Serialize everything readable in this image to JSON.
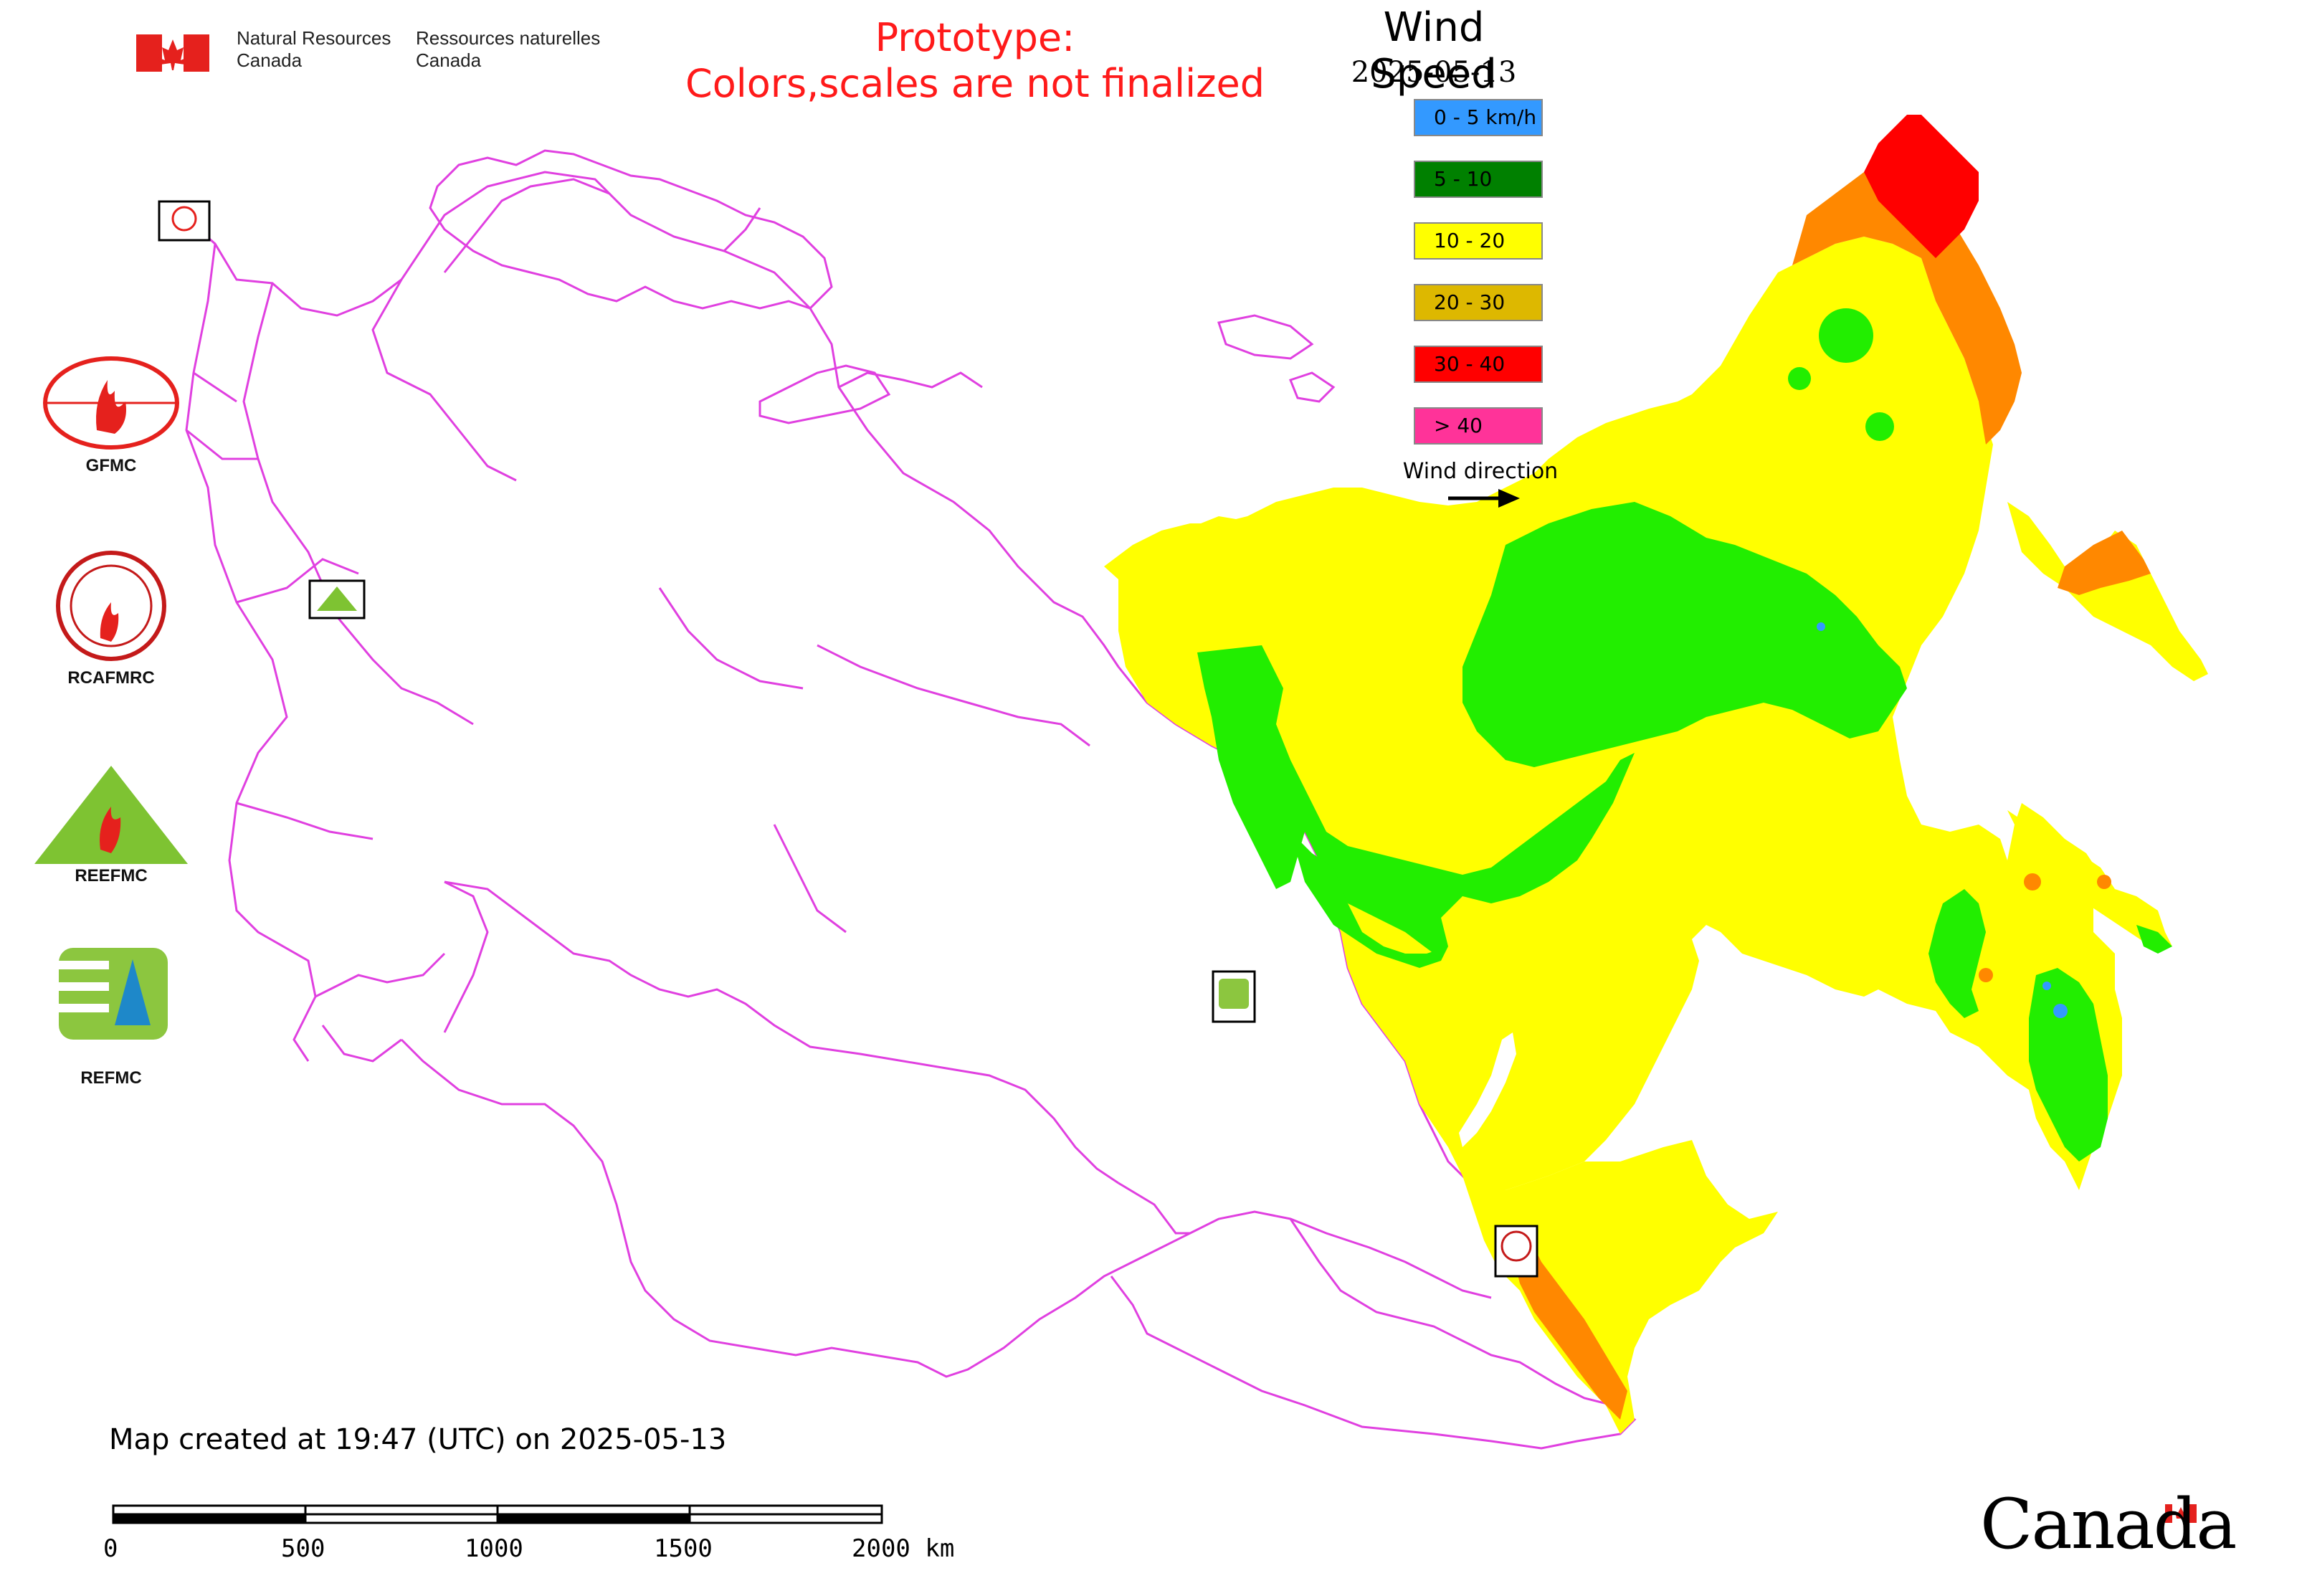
{
  "header": {
    "agency_en_line1": "Natural Resources",
    "agency_en_line2": "Canada",
    "agency_fr_line1": "Ressources naturelles",
    "agency_fr_line2": "Canada"
  },
  "notice": {
    "line1": "Prototype:",
    "line2": "Colors,scales are not finalized",
    "color": "#ff1a1a"
  },
  "legend": {
    "title": "Wind Speed",
    "date": "2025-05-13",
    "items": [
      {
        "label": "0 - 5 km/h",
        "color": "#3399ff"
      },
      {
        "label": "5 - 10",
        "color": "#008000"
      },
      {
        "label": "10 - 20",
        "color": "#ffff00"
      },
      {
        "label": "20 - 30",
        "color": "#ddb800"
      },
      {
        "label": "30 - 40",
        "color": "#ff0000"
      },
      {
        "label": "> 40",
        "color": "#ff3399"
      }
    ],
    "wind_direction_label": "Wind direction"
  },
  "map_colors": {
    "boundary": "#e040e0",
    "yellow": "#ffff00",
    "green": "#22ee00",
    "orange": "#ff8800",
    "red": "#ff0000"
  },
  "organizations": {
    "gfmc": "GFMC",
    "rcafmrc": "RCAFMRC",
    "reefmc": "REEFMC",
    "refmc": "REFMC"
  },
  "footer": {
    "map_created": "Map created at 19:47 (UTC) on 2025-05-13",
    "scale_labels": [
      "0",
      "500",
      "1000",
      "1500",
      "2000 km"
    ],
    "wordmark": "Canada"
  }
}
